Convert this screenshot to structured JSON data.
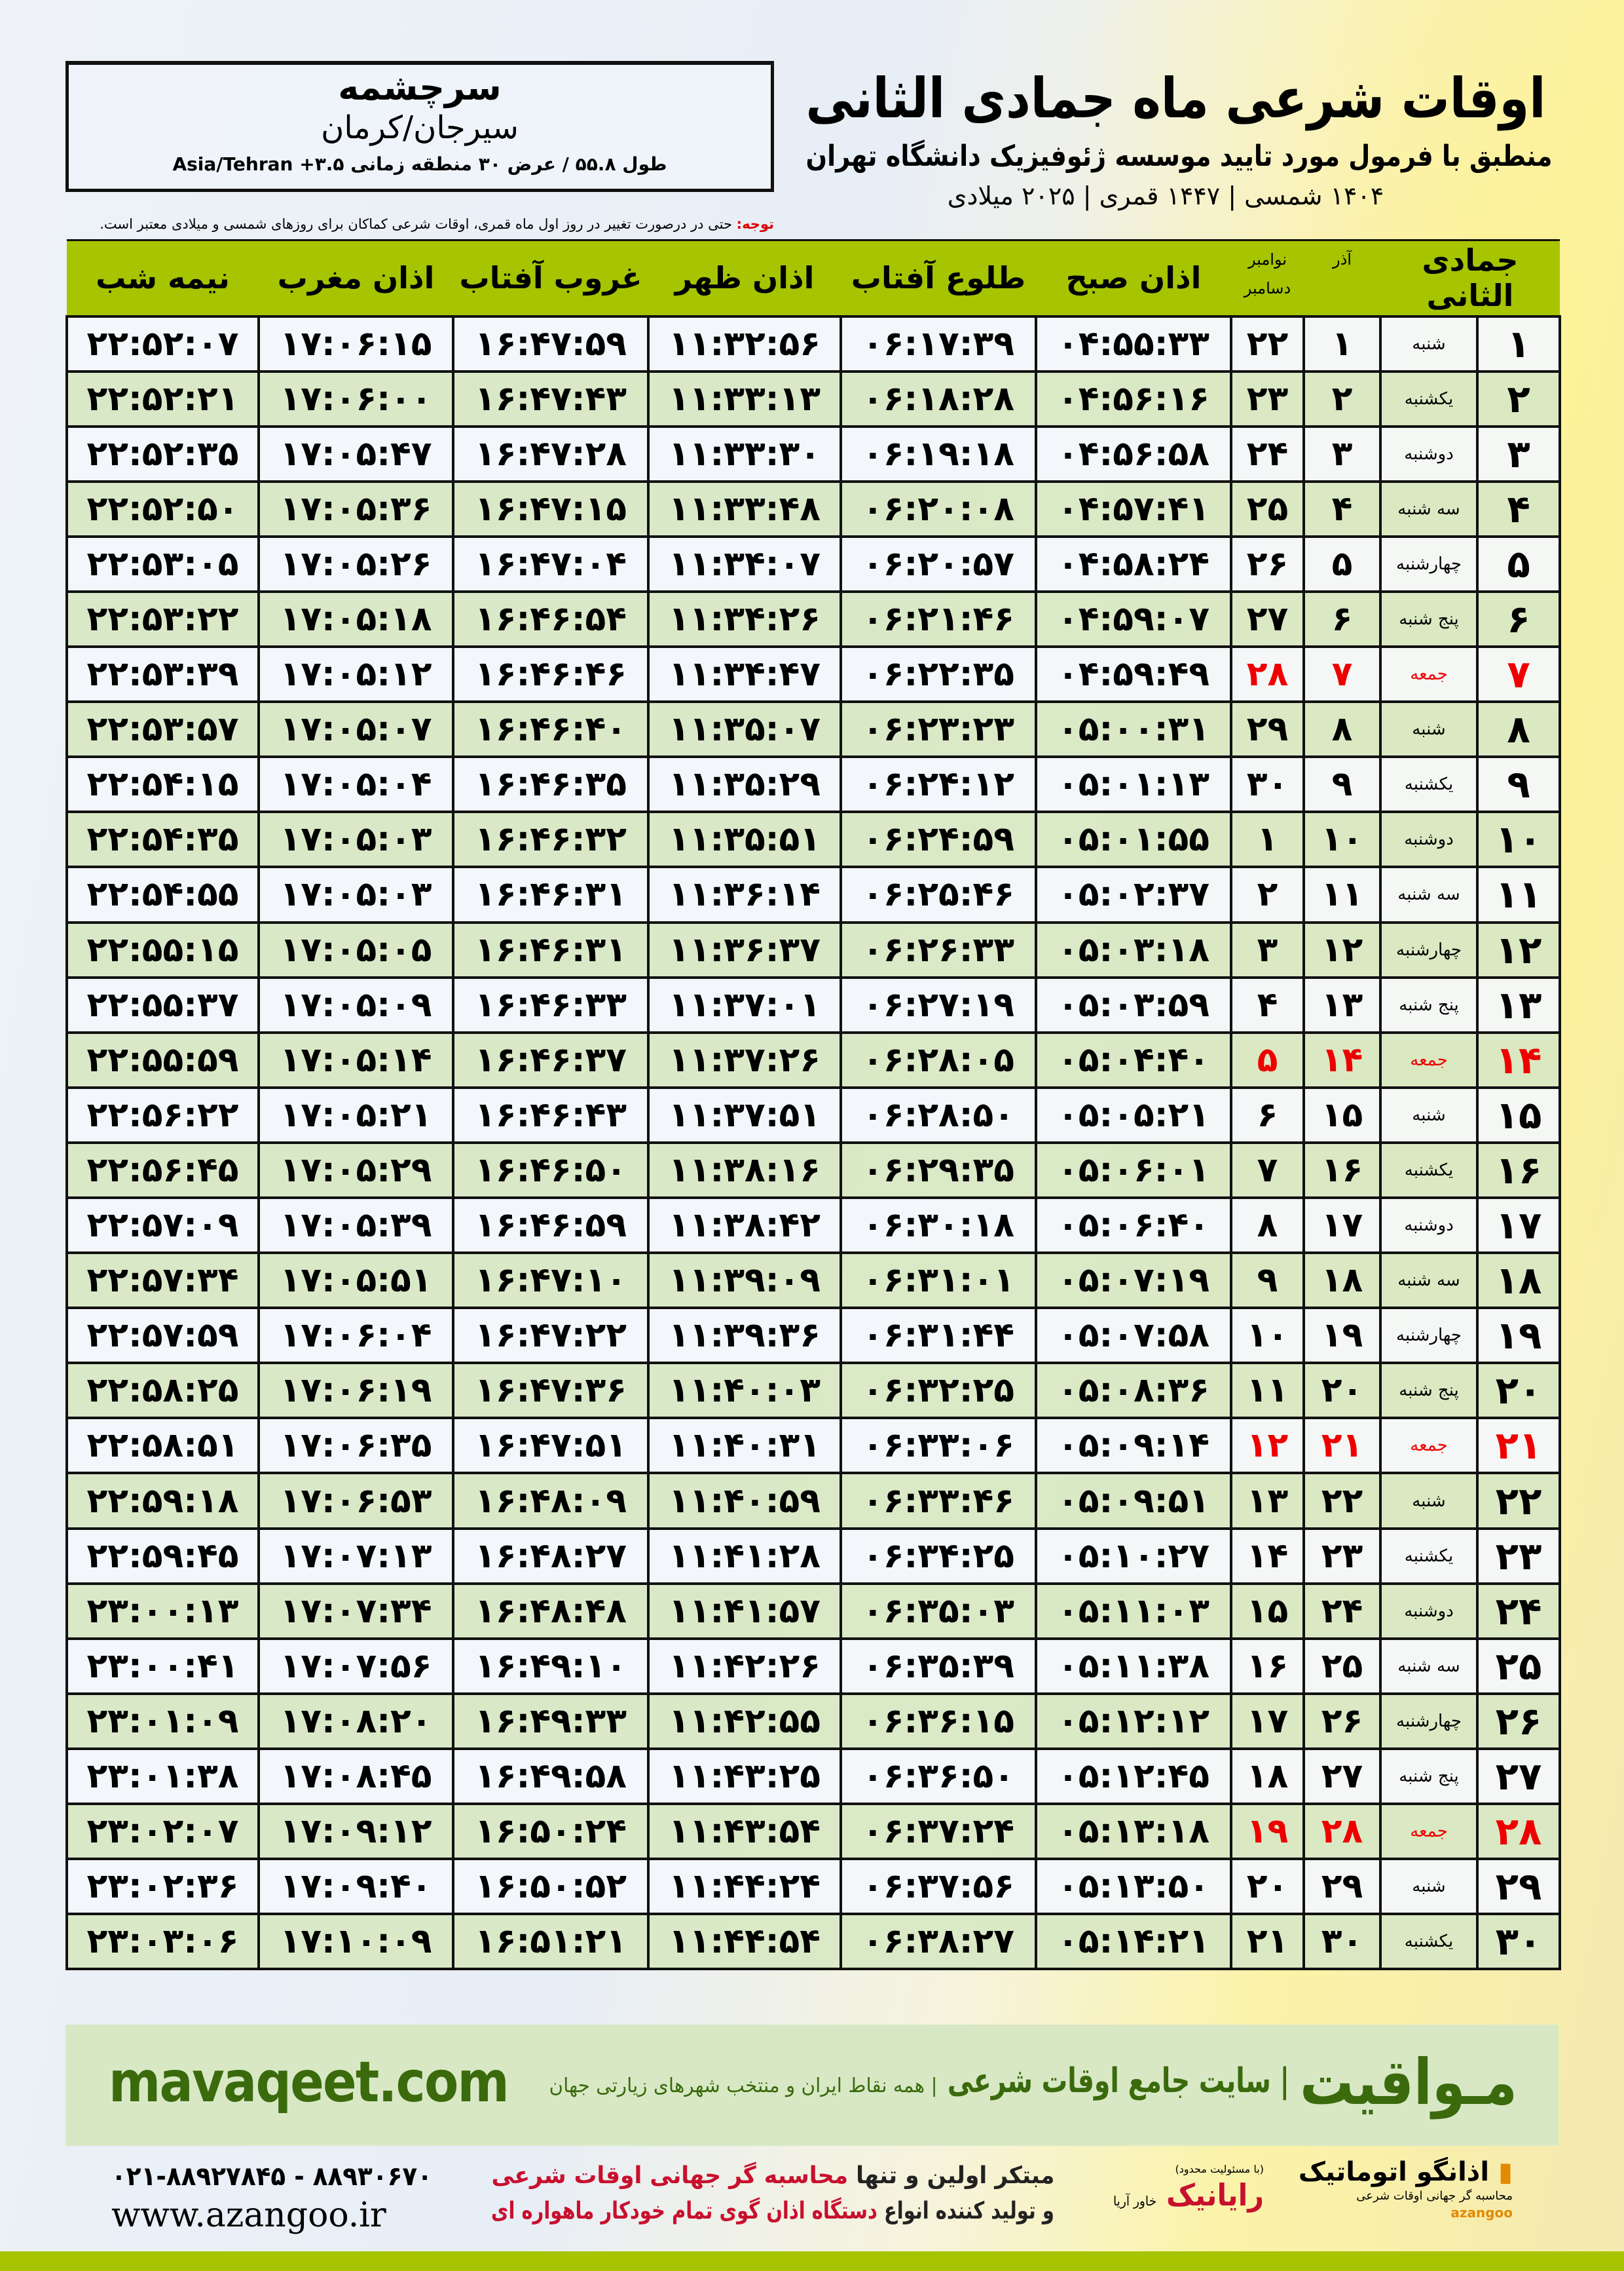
{
  "location": {
    "city": "سرچشمه",
    "province": "سیرجان/کرمان",
    "coords": "طول ۵۵.۸ / عرض ۳۰ منطقه زمانی ۳.۵+ Asia/Tehran"
  },
  "header": {
    "title": "اوقات شرعی ماه جمادی الثانی",
    "subtitle": "منطبق با فرمول مورد تایید موسسه ژئوفیزیک دانشگاه تهران",
    "dateline": "۱۴۰۴ شمسی | ۱۴۴۷ قمری | ۲۰۲۵ میلادی"
  },
  "note": {
    "label": "توجه:",
    "text": " حتی در درصورت تغییر در روز اول ماه قمری، اوقات شرعی کماکان برای روزهای شمسی و میلادی معتبر است."
  },
  "colors": {
    "header_green": "#a6c400",
    "row_green": "#d8e8c4",
    "holiday_red": "#e00000",
    "brand_green": "#3a6a0c"
  },
  "table": {
    "headers": [
      "جمادی الثانی",
      "آذر",
      "نوامبر",
      "دسامبر",
      "اذان صبح",
      "طلوع آفتاب",
      "اذان ظهر",
      "غروب آفتاب",
      "اذان مغرب",
      "نیمه شب"
    ],
    "rows": [
      [
        "۱",
        "شنبه",
        "۱",
        "۲۲",
        "۰۴:۵۵:۳۳",
        "۰۶:۱۷:۳۹",
        "۱۱:۳۲:۵۶",
        "۱۶:۴۷:۵۹",
        "۱۷:۰۶:۱۵",
        "۲۲:۵۲:۰۷"
      ],
      [
        "۲",
        "یکشنبه",
        "۲",
        "۲۳",
        "۰۴:۵۶:۱۶",
        "۰۶:۱۸:۲۸",
        "۱۱:۳۳:۱۳",
        "۱۶:۴۷:۴۳",
        "۱۷:۰۶:۰۰",
        "۲۲:۵۲:۲۱"
      ],
      [
        "۳",
        "دوشنبه",
        "۳",
        "۲۴",
        "۰۴:۵۶:۵۸",
        "۰۶:۱۹:۱۸",
        "۱۱:۳۳:۳۰",
        "۱۶:۴۷:۲۸",
        "۱۷:۰۵:۴۷",
        "۲۲:۵۲:۳۵"
      ],
      [
        "۴",
        "سه شنبه",
        "۴",
        "۲۵",
        "۰۴:۵۷:۴۱",
        "۰۶:۲۰:۰۸",
        "۱۱:۳۳:۴۸",
        "۱۶:۴۷:۱۵",
        "۱۷:۰۵:۳۶",
        "۲۲:۵۲:۵۰"
      ],
      [
        "۵",
        "چهارشنبه",
        "۵",
        "۲۶",
        "۰۴:۵۸:۲۴",
        "۰۶:۲۰:۵۷",
        "۱۱:۳۴:۰۷",
        "۱۶:۴۷:۰۴",
        "۱۷:۰۵:۲۶",
        "۲۲:۵۳:۰۵"
      ],
      [
        "۶",
        "پنج شنبه",
        "۶",
        "۲۷",
        "۰۴:۵۹:۰۷",
        "۰۶:۲۱:۴۶",
        "۱۱:۳۴:۲۶",
        "۱۶:۴۶:۵۴",
        "۱۷:۰۵:۱۸",
        "۲۲:۵۳:۲۲"
      ],
      [
        "۷",
        "جمعه",
        "۷",
        "۲۸",
        "۰۴:۵۹:۴۹",
        "۰۶:۲۲:۳۵",
        "۱۱:۳۴:۴۷",
        "۱۶:۴۶:۴۶",
        "۱۷:۰۵:۱۲",
        "۲۲:۵۳:۳۹"
      ],
      [
        "۸",
        "شنبه",
        "۸",
        "۲۹",
        "۰۵:۰۰:۳۱",
        "۰۶:۲۳:۲۳",
        "۱۱:۳۵:۰۷",
        "۱۶:۴۶:۴۰",
        "۱۷:۰۵:۰۷",
        "۲۲:۵۳:۵۷"
      ],
      [
        "۹",
        "یکشنبه",
        "۹",
        "۳۰",
        "۰۵:۰۱:۱۳",
        "۰۶:۲۴:۱۲",
        "۱۱:۳۵:۲۹",
        "۱۶:۴۶:۳۵",
        "۱۷:۰۵:۰۴",
        "۲۲:۵۴:۱۵"
      ],
      [
        "۱۰",
        "دوشنبه",
        "۱۰",
        "۱",
        "۰۵:۰۱:۵۵",
        "۰۶:۲۴:۵۹",
        "۱۱:۳۵:۵۱",
        "۱۶:۴۶:۳۲",
        "۱۷:۰۵:۰۳",
        "۲۲:۵۴:۳۵"
      ],
      [
        "۱۱",
        "سه شنبه",
        "۱۱",
        "۲",
        "۰۵:۰۲:۳۷",
        "۰۶:۲۵:۴۶",
        "۱۱:۳۶:۱۴",
        "۱۶:۴۶:۳۱",
        "۱۷:۰۵:۰۳",
        "۲۲:۵۴:۵۵"
      ],
      [
        "۱۲",
        "چهارشنبه",
        "۱۲",
        "۳",
        "۰۵:۰۳:۱۸",
        "۰۶:۲۶:۳۳",
        "۱۱:۳۶:۳۷",
        "۱۶:۴۶:۳۱",
        "۱۷:۰۵:۰۵",
        "۲۲:۵۵:۱۵"
      ],
      [
        "۱۳",
        "پنج شنبه",
        "۱۳",
        "۴",
        "۰۵:۰۳:۵۹",
        "۰۶:۲۷:۱۹",
        "۱۱:۳۷:۰۱",
        "۱۶:۴۶:۳۳",
        "۱۷:۰۵:۰۹",
        "۲۲:۵۵:۳۷"
      ],
      [
        "۱۴",
        "جمعه",
        "۱۴",
        "۵",
        "۰۵:۰۴:۴۰",
        "۰۶:۲۸:۰۵",
        "۱۱:۳۷:۲۶",
        "۱۶:۴۶:۳۷",
        "۱۷:۰۵:۱۴",
        "۲۲:۵۵:۵۹"
      ],
      [
        "۱۵",
        "شنبه",
        "۱۵",
        "۶",
        "۰۵:۰۵:۲۱",
        "۰۶:۲۸:۵۰",
        "۱۱:۳۷:۵۱",
        "۱۶:۴۶:۴۳",
        "۱۷:۰۵:۲۱",
        "۲۲:۵۶:۲۲"
      ],
      [
        "۱۶",
        "یکشنبه",
        "۱۶",
        "۷",
        "۰۵:۰۶:۰۱",
        "۰۶:۲۹:۳۵",
        "۱۱:۳۸:۱۶",
        "۱۶:۴۶:۵۰",
        "۱۷:۰۵:۲۹",
        "۲۲:۵۶:۴۵"
      ],
      [
        "۱۷",
        "دوشنبه",
        "۱۷",
        "۸",
        "۰۵:۰۶:۴۰",
        "۰۶:۳۰:۱۸",
        "۱۱:۳۸:۴۲",
        "۱۶:۴۶:۵۹",
        "۱۷:۰۵:۳۹",
        "۲۲:۵۷:۰۹"
      ],
      [
        "۱۸",
        "سه شنبه",
        "۱۸",
        "۹",
        "۰۵:۰۷:۱۹",
        "۰۶:۳۱:۰۱",
        "۱۱:۳۹:۰۹",
        "۱۶:۴۷:۱۰",
        "۱۷:۰۵:۵۱",
        "۲۲:۵۷:۳۴"
      ],
      [
        "۱۹",
        "چهارشنبه",
        "۱۹",
        "۱۰",
        "۰۵:۰۷:۵۸",
        "۰۶:۳۱:۴۴",
        "۱۱:۳۹:۳۶",
        "۱۶:۴۷:۲۲",
        "۱۷:۰۶:۰۴",
        "۲۲:۵۷:۵۹"
      ],
      [
        "۲۰",
        "پنج شنبه",
        "۲۰",
        "۱۱",
        "۰۵:۰۸:۳۶",
        "۰۶:۳۲:۲۵",
        "۱۱:۴۰:۰۳",
        "۱۶:۴۷:۳۶",
        "۱۷:۰۶:۱۹",
        "۲۲:۵۸:۲۵"
      ],
      [
        "۲۱",
        "جمعه",
        "۲۱",
        "۱۲",
        "۰۵:۰۹:۱۴",
        "۰۶:۳۳:۰۶",
        "۱۱:۴۰:۳۱",
        "۱۶:۴۷:۵۱",
        "۱۷:۰۶:۳۵",
        "۲۲:۵۸:۵۱"
      ],
      [
        "۲۲",
        "شنبه",
        "۲۲",
        "۱۳",
        "۰۵:۰۹:۵۱",
        "۰۶:۳۳:۴۶",
        "۱۱:۴۰:۵۹",
        "۱۶:۴۸:۰۹",
        "۱۷:۰۶:۵۳",
        "۲۲:۵۹:۱۸"
      ],
      [
        "۲۳",
        "یکشنبه",
        "۲۳",
        "۱۴",
        "۰۵:۱۰:۲۷",
        "۰۶:۳۴:۲۵",
        "۱۱:۴۱:۲۸",
        "۱۶:۴۸:۲۷",
        "۱۷:۰۷:۱۳",
        "۲۲:۵۹:۴۵"
      ],
      [
        "۲۴",
        "دوشنبه",
        "۲۴",
        "۱۵",
        "۰۵:۱۱:۰۳",
        "۰۶:۳۵:۰۳",
        "۱۱:۴۱:۵۷",
        "۱۶:۴۸:۴۸",
        "۱۷:۰۷:۳۴",
        "۲۳:۰۰:۱۳"
      ],
      [
        "۲۵",
        "سه شنبه",
        "۲۵",
        "۱۶",
        "۰۵:۱۱:۳۸",
        "۰۶:۳۵:۳۹",
        "۱۱:۴۲:۲۶",
        "۱۶:۴۹:۱۰",
        "۱۷:۰۷:۵۶",
        "۲۳:۰۰:۴۱"
      ],
      [
        "۲۶",
        "چهارشنبه",
        "۲۶",
        "۱۷",
        "۰۵:۱۲:۱۲",
        "۰۶:۳۶:۱۵",
        "۱۱:۴۲:۵۵",
        "۱۶:۴۹:۳۳",
        "۱۷:۰۸:۲۰",
        "۲۳:۰۱:۰۹"
      ],
      [
        "۲۷",
        "پنج شنبه",
        "۲۷",
        "۱۸",
        "۰۵:۱۲:۴۵",
        "۰۶:۳۶:۵۰",
        "۱۱:۴۳:۲۵",
        "۱۶:۴۹:۵۸",
        "۱۷:۰۸:۴۵",
        "۲۳:۰۱:۳۸"
      ],
      [
        "۲۸",
        "جمعه",
        "۲۸",
        "۱۹",
        "۰۵:۱۳:۱۸",
        "۰۶:۳۷:۲۴",
        "۱۱:۴۳:۵۴",
        "۱۶:۵۰:۲۴",
        "۱۷:۰۹:۱۲",
        "۲۳:۰۲:۰۷"
      ],
      [
        "۲۹",
        "شنبه",
        "۲۹",
        "۲۰",
        "۰۵:۱۳:۵۰",
        "۰۶:۳۷:۵۶",
        "۱۱:۴۴:۲۴",
        "۱۶:۵۰:۵۲",
        "۱۷:۰۹:۴۰",
        "۲۳:۰۲:۳۶"
      ],
      [
        "۳۰",
        "یکشنبه",
        "۳۰",
        "۲۱",
        "۰۵:۱۴:۲۱",
        "۰۶:۳۸:۲۷",
        "۱۱:۴۴:۵۴",
        "۱۶:۵۱:۲۱",
        "۱۷:۱۰:۰۹",
        "۲۳:۰۳:۰۶"
      ]
    ],
    "holiday_weekday": "جمعه"
  },
  "promo": {
    "brand": "مـواقیت",
    "separator": "|",
    "tagline": "سایت جامع اوقات شرعی",
    "subline": "همه نقاط ایران و منتخب شهرهای زیارتی جهان",
    "url": "mavaqeet.com"
  },
  "footer": {
    "phone": "۰۲۱-۸۸۹۲۷۸۴۵ - ۸۸۹۳۰۶۷۰",
    "website": "www.azangoo.ir",
    "line1_a": "مبتکر اولین و تنها ",
    "line1_b": "محاسبه گر جهانی اوقات شرعی",
    "line2_a": "و تولید کننده انواع ",
    "line2_b": "دستگاه اذان گوی تمام خودکار ماهواره ای",
    "logo_raianik": "رایانیک",
    "logo_raianik_sub": "خاور آریا",
    "logo_raianik_note": "(با مسئولیت محدود)",
    "logo_azangoo": "اذانگو اتوماتیک",
    "logo_azangoo_sub": "محاسبه گر جهانی اوقات شرعی",
    "logo_azangoo_en": "azangoo"
  }
}
